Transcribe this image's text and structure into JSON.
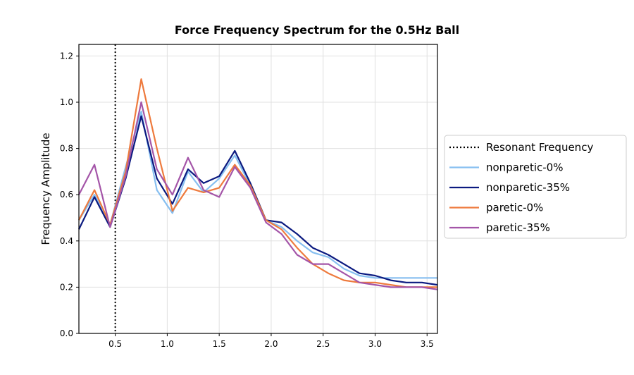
{
  "chart_data": {
    "type": "line",
    "title": "Force Frequency Spectrum for the 0.5Hz Ball",
    "xlabel": "",
    "ylabel": "Frequency Amplitude",
    "xlim": [
      0.15,
      3.6
    ],
    "ylim": [
      0.0,
      1.25
    ],
    "x_ticks": [
      0.5,
      1.0,
      1.5,
      2.0,
      2.5,
      3.0,
      3.5
    ],
    "x_tick_labels": [
      "0.5",
      "1.0",
      "1.5",
      "2.0",
      "2.5",
      "3.0",
      "3.5"
    ],
    "y_ticks": [
      0.0,
      0.2,
      0.4,
      0.6,
      0.8,
      1.0,
      1.2
    ],
    "y_tick_labels": [
      "0.0",
      "0.2",
      "0.4",
      "0.6",
      "0.8",
      "1.0",
      "1.2"
    ],
    "grid": true,
    "legend_position": "outside-right",
    "x": [
      0.15,
      0.3,
      0.45,
      0.6,
      0.75,
      0.9,
      1.05,
      1.2,
      1.35,
      1.5,
      1.65,
      1.8,
      1.95,
      2.1,
      2.25,
      2.4,
      2.55,
      2.7,
      2.85,
      3.0,
      3.15,
      3.3,
      3.45,
      3.6
    ],
    "reference_line": {
      "name": "Resonant Frequency",
      "x": 0.5,
      "color": "#000000",
      "style": "dotted"
    },
    "series": [
      {
        "name": "nonparetic-0%",
        "color": "#87bff0",
        "values": [
          0.49,
          0.6,
          0.47,
          0.72,
          0.96,
          0.62,
          0.52,
          0.7,
          0.61,
          0.67,
          0.77,
          0.64,
          0.49,
          0.46,
          0.4,
          0.35,
          0.33,
          0.28,
          0.25,
          0.24,
          0.24,
          0.24,
          0.24,
          0.24
        ]
      },
      {
        "name": "nonparetic-35%",
        "color": "#0b1a80",
        "values": [
          0.45,
          0.59,
          0.46,
          0.67,
          0.94,
          0.67,
          0.56,
          0.71,
          0.65,
          0.68,
          0.79,
          0.65,
          0.49,
          0.48,
          0.43,
          0.37,
          0.34,
          0.3,
          0.26,
          0.25,
          0.23,
          0.22,
          0.22,
          0.21
        ]
      },
      {
        "name": "paretic-0%",
        "color": "#ee7a3d",
        "values": [
          0.49,
          0.62,
          0.47,
          0.7,
          1.1,
          0.8,
          0.53,
          0.63,
          0.61,
          0.63,
          0.73,
          0.64,
          0.49,
          0.45,
          0.37,
          0.3,
          0.26,
          0.23,
          0.22,
          0.22,
          0.21,
          0.2,
          0.2,
          0.2
        ]
      },
      {
        "name": "paretic-35%",
        "color": "#a455a8",
        "values": [
          0.6,
          0.73,
          0.46,
          0.68,
          1.0,
          0.71,
          0.6,
          0.76,
          0.62,
          0.59,
          0.72,
          0.63,
          0.48,
          0.43,
          0.34,
          0.3,
          0.3,
          0.26,
          0.22,
          0.21,
          0.2,
          0.2,
          0.2,
          0.19
        ]
      }
    ]
  }
}
